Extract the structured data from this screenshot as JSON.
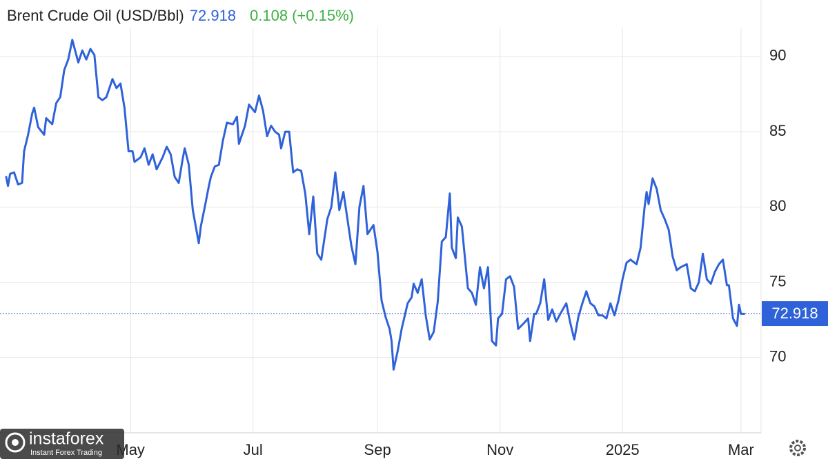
{
  "chart_data": {
    "type": "line",
    "title": "Brent Crude Oil (USD/Bbl)",
    "last": 72.918,
    "change": 0.108,
    "change_pct": "(+0.15%)",
    "color": "#2f62d8",
    "change_color": "#3cb043",
    "x": [
      0,
      1,
      2,
      4,
      6,
      8,
      9,
      11,
      13,
      14,
      16,
      19,
      20,
      23,
      25,
      27,
      29,
      31,
      33,
      36,
      38,
      40,
      42,
      44,
      46,
      48,
      50,
      53,
      55,
      57,
      59,
      61,
      63,
      64,
      67,
      69,
      71,
      73,
      75,
      78,
      80,
      82,
      84,
      86,
      88,
      89,
      91,
      93,
      96,
      97,
      99,
      101,
      102,
      104,
      106,
      108,
      110,
      113,
      115,
      116,
      117,
      119,
      121,
      124,
      126,
      128,
      130,
      132,
      134,
      136,
      137,
      139,
      141,
      143,
      145,
      147,
      149,
      151,
      153,
      155,
      157,
      160,
      162,
      164,
      166,
      168,
      170,
      172,
      174,
      176,
      178,
      180,
      183,
      185,
      187,
      189,
      191,
      192,
      193,
      195,
      197,
      200,
      202,
      203,
      205,
      207,
      209,
      211,
      213,
      215,
      217,
      219,
      221,
      222,
      224,
      225,
      227,
      230,
      232,
      234,
      236,
      238,
      240,
      242,
      244,
      245,
      247,
      249,
      251,
      253,
      255,
      258,
      260,
      261,
      263,
      264,
      266,
      268,
      270,
      272,
      274,
      276,
      279,
      281,
      283,
      285,
      287,
      289,
      291,
      293,
      295,
      297,
      299,
      301,
      303,
      305,
      307,
      309,
      311,
      314,
      316,
      318,
      319,
      320,
      322,
      324,
      326,
      328,
      330,
      332,
      334,
      336,
      339,
      341,
      343,
      345,
      347,
      349,
      351,
      353,
      355,
      357,
      359,
      360,
      362,
      364,
      365,
      366,
      368
    ],
    "values": [
      82.05,
      81.4,
      82.2,
      82.3,
      81.5,
      81.6,
      83.7,
      84.8,
      86.2,
      86.6,
      85.3,
      84.8,
      85.9,
      85.5,
      86.9,
      87.3,
      89.1,
      89.8,
      91.1,
      89.6,
      90.4,
      89.8,
      90.5,
      90.1,
      87.3,
      87.1,
      87.3,
      88.5,
      87.9,
      88.2,
      86.6,
      83.7,
      83.7,
      83.0,
      83.3,
      83.9,
      82.8,
      83.5,
      82.5,
      83.3,
      84.0,
      83.5,
      82.0,
      81.6,
      83.2,
      83.9,
      82.8,
      79.8,
      77.6,
      78.7,
      80.0,
      81.4,
      82.0,
      82.7,
      82.8,
      84.4,
      85.6,
      85.5,
      86.0,
      84.2,
      84.6,
      85.4,
      86.8,
      86.3,
      87.4,
      86.4,
      84.7,
      85.4,
      85.0,
      84.8,
      83.9,
      85.0,
      85.0,
      82.3,
      82.5,
      82.4,
      80.9,
      78.2,
      80.7,
      76.9,
      76.5,
      79.2,
      80.0,
      82.3,
      79.8,
      81.0,
      79.2,
      77.4,
      76.2,
      80.0,
      81.4,
      78.2,
      78.8,
      77.0,
      73.8,
      72.7,
      71.9,
      71.1,
      69.2,
      70.4,
      71.9,
      73.6,
      74.0,
      74.9,
      74.3,
      75.2,
      72.8,
      71.2,
      71.7,
      73.7,
      77.7,
      78.0,
      80.9,
      77.3,
      76.6,
      79.3,
      78.7,
      74.6,
      74.3,
      73.5,
      76.0,
      74.6,
      76.0,
      71.1,
      70.8,
      72.6,
      72.9,
      75.2,
      75.4,
      74.7,
      71.9,
      72.3,
      72.6,
      71.1,
      72.9,
      72.9,
      73.6,
      75.2,
      72.5,
      73.2,
      72.4,
      72.9,
      73.6,
      72.3,
      71.2,
      72.7,
      73.6,
      74.4,
      73.6,
      73.4,
      72.8,
      72.8,
      72.6,
      73.6,
      72.8,
      73.8,
      75.2,
      76.3,
      76.5,
      76.2,
      77.3,
      80.0,
      81.0,
      80.2,
      81.9,
      81.2,
      79.8,
      79.2,
      78.5,
      76.7,
      75.8,
      76.0,
      76.2,
      74.6,
      74.4,
      75.0,
      76.9,
      75.2,
      74.9,
      75.7,
      76.2,
      76.5,
      74.8,
      74.8,
      72.6,
      72.1,
      73.5,
      72.9,
      72.9
    ],
    "xlim": [
      -3,
      376
    ],
    "xticks": [
      {
        "value": 62,
        "label": "May"
      },
      {
        "value": 123,
        "label": "Jul"
      },
      {
        "value": 185,
        "label": "Sep"
      },
      {
        "value": 246,
        "label": "Nov"
      },
      {
        "value": 307,
        "label": "2025"
      },
      {
        "value": 366,
        "label": "Mar"
      }
    ],
    "ylim": [
      65,
      93.75
    ],
    "yticks": [
      70,
      75,
      80,
      85,
      90
    ],
    "grid": true
  },
  "watermark": {
    "brand": "instaforex",
    "tagline": "Instant Forex Trading"
  }
}
